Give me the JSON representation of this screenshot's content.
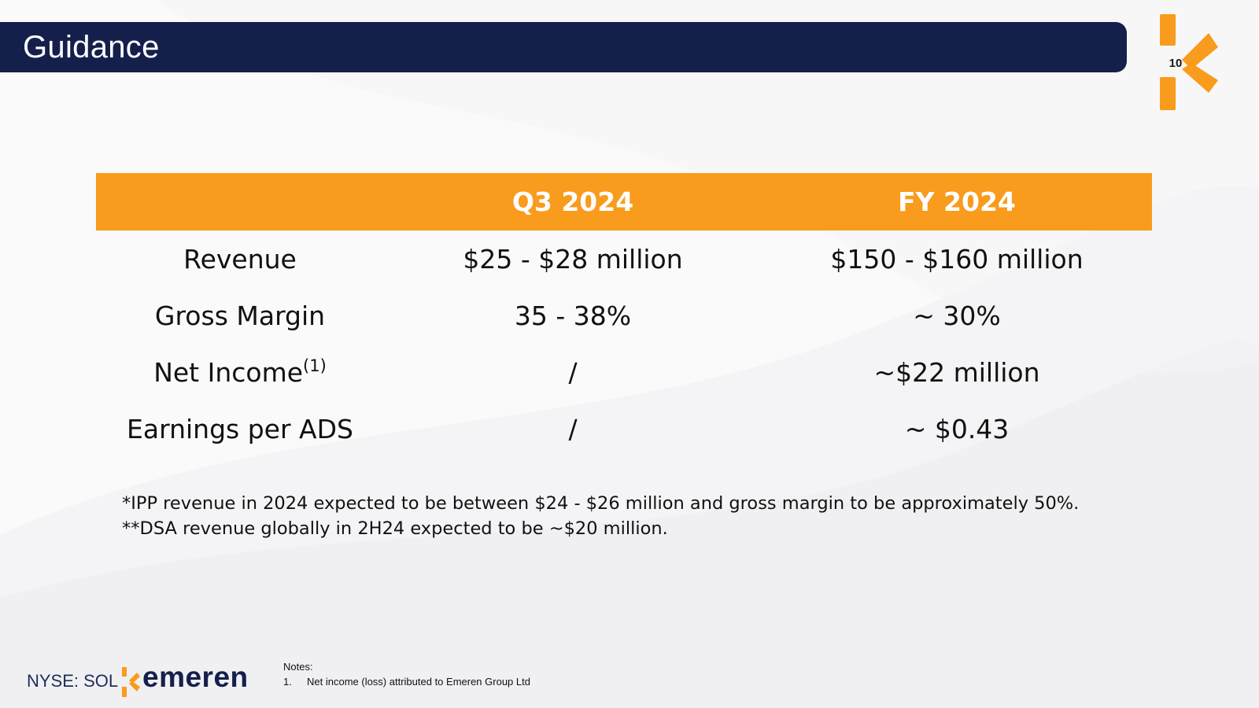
{
  "slide": {
    "title": "Guidance",
    "page_number": "10"
  },
  "table": {
    "headers": [
      "",
      "Q3 2024",
      "FY 2024"
    ],
    "rows": [
      {
        "metric": "Revenue",
        "note_ref": "",
        "q3": "$25 - $28 million",
        "fy": "$150 - $160 million"
      },
      {
        "metric": "Gross Margin",
        "note_ref": "",
        "q3": "35 - 38%",
        "fy": "~ 30%"
      },
      {
        "metric": "Net Income",
        "note_ref": "(1)",
        "q3": "/",
        "fy": "~$22 million"
      },
      {
        "metric": "Earnings per ADS",
        "note_ref": "",
        "q3": "/",
        "fy": "~ $0.43"
      }
    ]
  },
  "footnotes": [
    "*IPP revenue in 2024 expected to be between $24 - $26 million and gross margin to be approximately 50%.",
    "**DSA revenue globally in 2H24 expected to be ~$20 million."
  ],
  "footer": {
    "ticker": "NYSE: SOL",
    "brand": "emeren",
    "notes_title": "Notes:",
    "notes": [
      {
        "number": "1.",
        "text": "Net income (loss) attributed to Emeren Group Ltd"
      }
    ]
  },
  "colors": {
    "title_bar": "#151f4b",
    "accent": "#f99b1c",
    "background": "#fafafa"
  },
  "icons": {
    "corner_logo": "emeren-k-logo",
    "footer_logo": "emeren-k-logo"
  }
}
